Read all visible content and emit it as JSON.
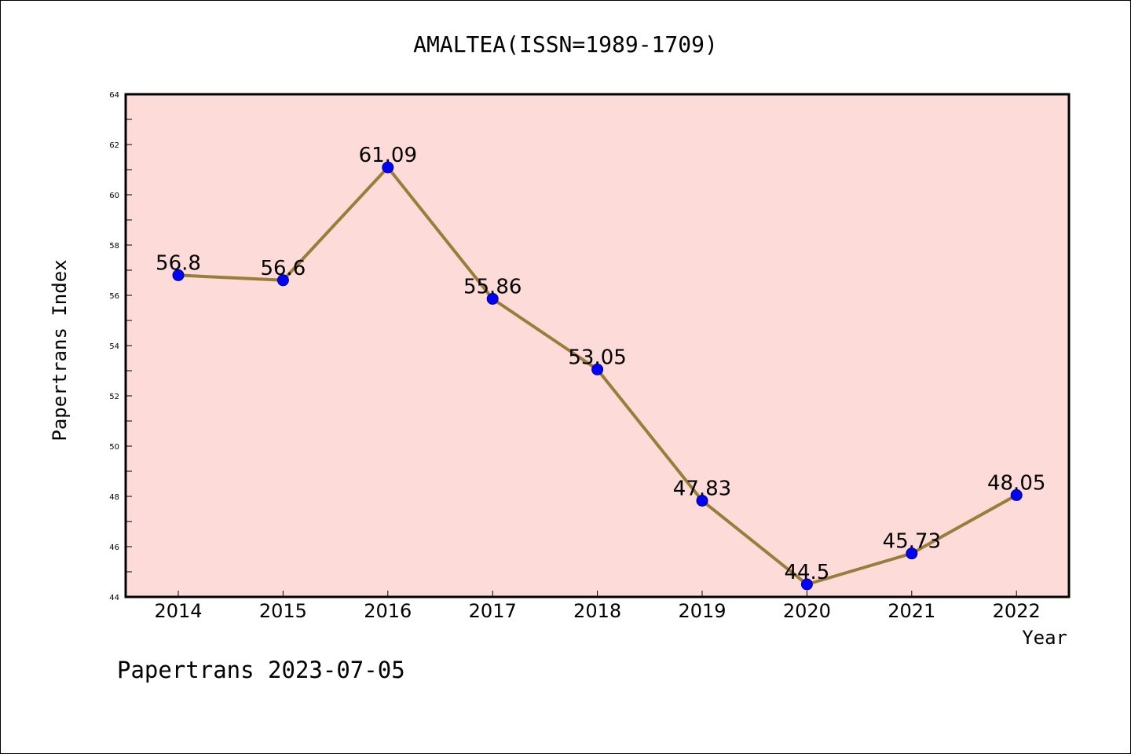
{
  "chart_data": {
    "type": "line",
    "title": "AMALTEA(ISSN=1989-1709)",
    "xlabel": "Year",
    "ylabel": "Papertrans Index",
    "categories": [
      "2014",
      "2015",
      "2016",
      "2017",
      "2018",
      "2019",
      "2020",
      "2021",
      "2022"
    ],
    "series": [
      {
        "values": [
          56.8,
          56.6,
          61.09,
          55.86,
          53.05,
          47.83,
          44.5,
          45.73,
          48.05
        ],
        "labels": [
          "56.8",
          "56.6",
          "61.09",
          "55.86",
          "53.05",
          "47.83",
          "44.5",
          "45.73",
          "48.05"
        ]
      }
    ],
    "ylim": [
      44,
      64
    ],
    "yticks": [
      "44",
      "46",
      "48",
      "50",
      "52",
      "54",
      "56",
      "58",
      "60",
      "62",
      "64"
    ],
    "grid": false,
    "colors": {
      "plot_background": "#fddbd8",
      "line": "#9a7d3a",
      "marker": "#0000ff"
    }
  },
  "footer": "Papertrans 2023-07-05"
}
